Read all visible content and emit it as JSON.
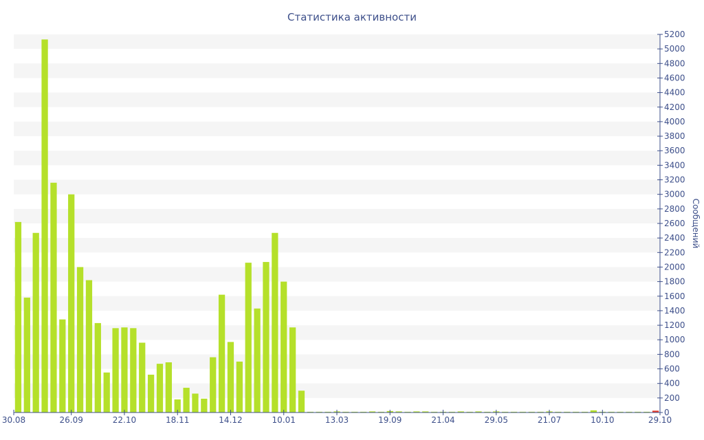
{
  "chart_data": {
    "type": "bar",
    "title": "Статистика активности",
    "ylabel": "Сообщений",
    "xlabel": "",
    "ylim": [
      0,
      5200
    ],
    "y_ticks": [
      0,
      200,
      400,
      600,
      800,
      1000,
      1200,
      1400,
      1600,
      1800,
      2000,
      2200,
      2400,
      2600,
      2800,
      3000,
      3200,
      3400,
      3600,
      3800,
      4000,
      4200,
      4400,
      4600,
      4800,
      5000,
      5200
    ],
    "x_tick_labels": [
      {
        "label": "30.08",
        "index": 0
      },
      {
        "label": "26.09",
        "index": 6
      },
      {
        "label": "22.10",
        "index": 12
      },
      {
        "label": "18.11",
        "index": 18
      },
      {
        "label": "14.12",
        "index": 24
      },
      {
        "label": "10.01",
        "index": 30
      },
      {
        "label": "13.03",
        "index": 36
      },
      {
        "label": "19.09",
        "index": 42
      },
      {
        "label": "21.04",
        "index": 48
      },
      {
        "label": "29.05",
        "index": 54
      },
      {
        "label": "21.07",
        "index": 60
      },
      {
        "label": "10.10",
        "index": 66
      },
      {
        "label": "29.10",
        "index": 72
      }
    ],
    "values": [
      2620,
      1580,
      2470,
      5130,
      3160,
      1280,
      3000,
      2000,
      1820,
      1230,
      550,
      1160,
      1170,
      1160,
      960,
      520,
      670,
      690,
      180,
      340,
      260,
      190,
      760,
      1620,
      970,
      700,
      2060,
      1430,
      2070,
      2470,
      1800,
      1170,
      300,
      10,
      10,
      10,
      15,
      10,
      10,
      10,
      15,
      10,
      20,
      15,
      10,
      15,
      15,
      10,
      10,
      10,
      15,
      10,
      15,
      10,
      15,
      10,
      10,
      10,
      10,
      10,
      15,
      10,
      10,
      10,
      10,
      30,
      10,
      10,
      10,
      10,
      10,
      10,
      25
    ],
    "bar_color": "#b5e02a",
    "last_bar_color": "#e53a2a",
    "grid_band_color": "#f5f5f5",
    "axis_color": "#3d4f8a",
    "y_axis_position": "right",
    "grid": true
  }
}
